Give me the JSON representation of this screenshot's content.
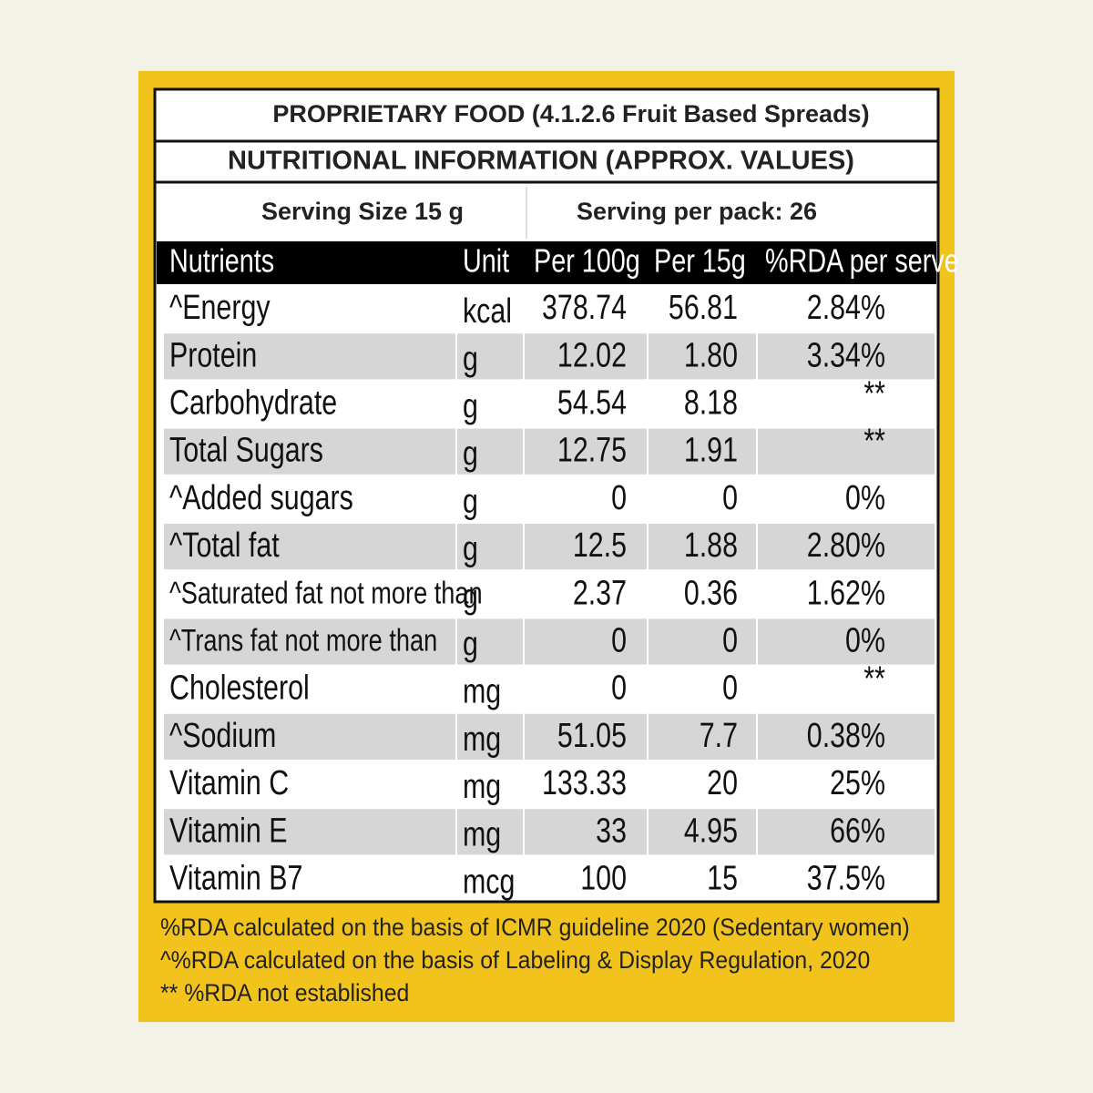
{
  "header": {
    "title": "PROPRIETARY FOOD (4.1.2.6 Fruit Based Spreads)",
    "subtitle": "NUTRITIONAL INFORMATION (APPROX. VALUES)",
    "serving_size": "Serving Size 15 g",
    "servings_per_pack": "Serving per pack: 26"
  },
  "table": {
    "columns": [
      "Nutrients",
      "Unit",
      "Per 100g",
      "Per 15g",
      "%RDA per serve"
    ],
    "rows": [
      [
        "^Energy",
        "kcal",
        "378.74",
        "56.81",
        "2.84%"
      ],
      [
        "Protein",
        "g",
        "12.02",
        "1.80",
        "3.34%"
      ],
      [
        "Carbohydrate",
        "g",
        "54.54",
        "8.18",
        "**"
      ],
      [
        "Total Sugars",
        "g",
        "12.75",
        "1.91",
        "**"
      ],
      [
        "^Added sugars",
        "g",
        "0",
        "0",
        "0%"
      ],
      [
        "^Total fat",
        "g",
        "12.5",
        "1.88",
        "2.80%"
      ],
      [
        "^Saturated fat not more than",
        "g",
        "2.37",
        "0.36",
        "1.62%"
      ],
      [
        "^Trans fat not more than",
        "g",
        "0",
        "0",
        "0%"
      ],
      [
        "Cholesterol",
        "mg",
        "0",
        "0",
        "**"
      ],
      [
        "^Sodium",
        "mg",
        "51.05",
        "7.7",
        "0.38%"
      ],
      [
        "Vitamin C",
        "mg",
        "133.33",
        "20",
        "25%"
      ],
      [
        "Vitamin E",
        "mg",
        "33",
        "4.95",
        "66%"
      ],
      [
        "Vitamin B7",
        "mcg",
        "100",
        "15",
        "37.5%"
      ]
    ]
  },
  "footnotes": [
    "%RDA calculated on the basis of ICMR guideline 2020 (Sedentary women)",
    "^%RDA  calculated on the basis of Labeling & Display Regulation, 2020",
    "** %RDA not established"
  ]
}
